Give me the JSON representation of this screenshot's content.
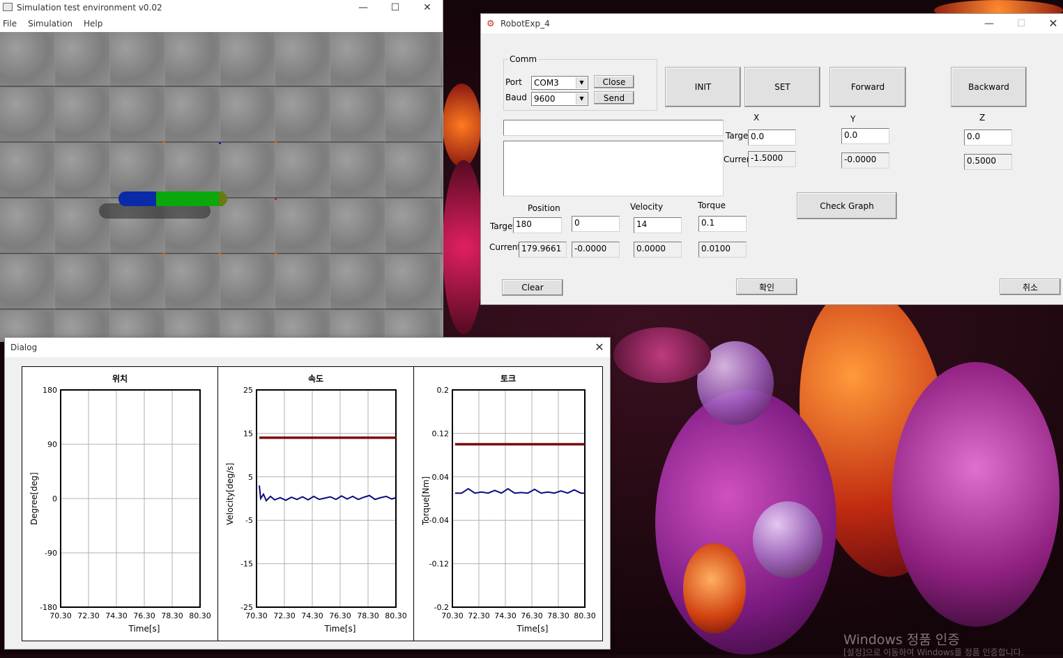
{
  "desktop": {
    "watermark": "Windows 정품 인증",
    "watermark_sub": "[설정]으로 이동하여 Windows를 정품 인증합니다."
  },
  "sim_window": {
    "title": "Simulation test environment v0.02",
    "menu": [
      "File",
      "Simulation",
      "Help"
    ]
  },
  "robot_window": {
    "title": "RobotExp_4",
    "comm": {
      "group_label": "Comm",
      "port_label": "Port",
      "port_value": "COM3",
      "baud_label": "Baud",
      "baud_value": "9600",
      "close_label": "Close",
      "send_label": "Send"
    },
    "buttons": {
      "init": "INIT",
      "set": "SET",
      "forward": "Forward",
      "backward": "Backward",
      "check_graph": "Check Graph",
      "clear": "Clear",
      "ok": "확인",
      "cancel": "취소"
    },
    "xyz": {
      "x_label": "X",
      "y_label": "Y",
      "z_label": "Z",
      "target_label": "Target",
      "current_label": "Curren",
      "target": {
        "x": "0.0",
        "y": "0.0",
        "z": "0.0"
      },
      "current": {
        "x": "-1.5000",
        "y": "-0.0000",
        "z": "0.5000"
      }
    },
    "joint": {
      "position_label": "Position",
      "velocity_label": "Velocity",
      "torque_label": "Torque",
      "target_label": "Target",
      "current_label": "Current",
      "target": {
        "position": "180",
        "position2": "0",
        "velocity": "14",
        "torque": "0.1"
      },
      "current": {
        "position": "179.9661",
        "position2": "-0.0000",
        "velocity": "0.0000",
        "torque": "0.0100"
      }
    },
    "send_text": "",
    "log_text": ""
  },
  "dialog": {
    "title": "Dialog"
  },
  "chart_data": [
    {
      "type": "line",
      "title": "위치",
      "xlabel": "Time[s]",
      "ylabel": "Degree[deg]",
      "xlim": [
        70.3,
        80.3
      ],
      "ylim": [
        -180,
        180
      ],
      "xticks": [
        "70.30",
        "72.30",
        "74.30",
        "76.30",
        "78.30",
        "80.30"
      ],
      "yticks": [
        "180",
        "90",
        "0",
        "-90",
        "-180"
      ],
      "grid": true,
      "series": []
    },
    {
      "type": "line",
      "title": "속도",
      "xlabel": "Time[s]",
      "ylabel": "Velocity[deg/s]",
      "xlim": [
        70.3,
        80.3
      ],
      "ylim": [
        -25,
        25
      ],
      "xticks": [
        "70.30",
        "72.30",
        "74.30",
        "76.30",
        "78.30",
        "80.30"
      ],
      "yticks": [
        "25",
        "15",
        "5",
        "-5",
        "-15",
        "-25"
      ],
      "grid": true,
      "series": [
        {
          "color": "#7a0a0a",
          "x": [
            70.5,
            80.3
          ],
          "values": [
            14,
            14
          ]
        },
        {
          "color": "#0a0a80",
          "x": [
            70.5,
            70.6,
            70.8,
            71.0,
            71.3,
            71.6,
            72.0,
            72.4,
            72.8,
            73.2,
            73.6,
            74.0,
            74.4,
            74.8,
            75.2,
            75.6,
            76.0,
            76.4,
            76.8,
            77.2,
            77.6,
            78.0,
            78.4,
            78.8,
            79.2,
            79.6,
            80.0,
            80.3
          ],
          "values": [
            3,
            0,
            1,
            -0.5,
            0.5,
            -0.3,
            0.2,
            -0.4,
            0.3,
            -0.2,
            0.4,
            -0.3,
            0.5,
            -0.2,
            0.1,
            0.4,
            -0.2,
            0.6,
            -0.1,
            0.5,
            -0.2,
            0.3,
            0.7,
            -0.2,
            0.2,
            0.5,
            -0.1,
            0.2
          ]
        }
      ]
    },
    {
      "type": "line",
      "title": "토크",
      "xlabel": "Time[s]",
      "ylabel": "Torque[Nm]",
      "xlim": [
        70.3,
        80.3
      ],
      "ylim": [
        -0.2,
        0.2
      ],
      "xticks": [
        "70.30",
        "72.30",
        "74.30",
        "76.30",
        "78.30",
        "80.30"
      ],
      "yticks": [
        "0.2",
        "0.12",
        "0.04",
        "-0.04",
        "-0.12",
        "-0.2"
      ],
      "grid": true,
      "series": [
        {
          "color": "#7a0a0a",
          "x": [
            70.5,
            80.3
          ],
          "values": [
            0.1,
            0.1
          ]
        },
        {
          "color": "#0a0a80",
          "x": [
            70.5,
            71.0,
            71.5,
            72.0,
            72.5,
            73.0,
            73.5,
            74.0,
            74.5,
            75.0,
            75.5,
            76.0,
            76.5,
            77.0,
            77.5,
            78.0,
            78.5,
            79.0,
            79.5,
            80.0,
            80.3
          ],
          "values": [
            0.01,
            0.01,
            0.018,
            0.01,
            0.012,
            0.01,
            0.015,
            0.01,
            0.018,
            0.01,
            0.011,
            0.01,
            0.017,
            0.01,
            0.012,
            0.01,
            0.014,
            0.01,
            0.016,
            0.01,
            0.01
          ]
        }
      ]
    }
  ]
}
